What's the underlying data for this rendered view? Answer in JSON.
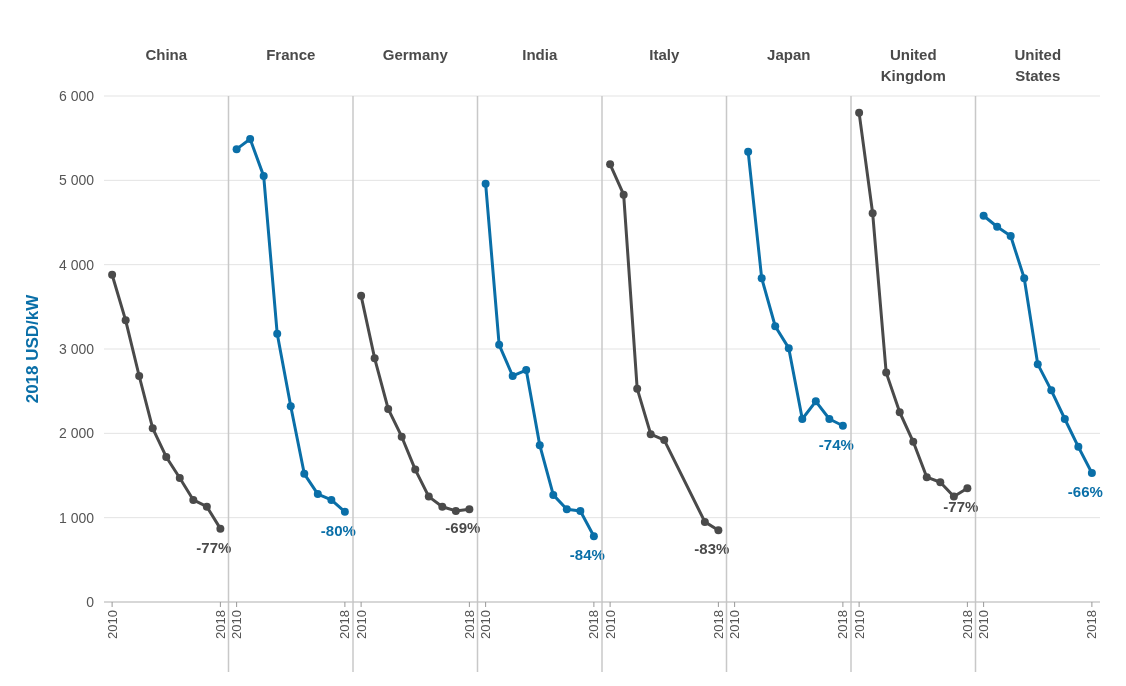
{
  "chart_data": [
    {
      "type": "line",
      "title": "China",
      "ylabel": "2018 USD/kW",
      "categories": [
        "2010",
        null,
        null,
        null,
        null,
        null,
        null,
        null,
        "2018"
      ],
      "series": [
        {
          "color": "#4a4a4a",
          "values": [
            3880,
            3340,
            2680,
            2060,
            1720,
            1470,
            1210,
            1130,
            870
          ]
        }
      ],
      "annotations": [
        {
          "text": "-77%",
          "x": "2018",
          "y": 870
        }
      ],
      "ylim": [
        0,
        6000
      ],
      "yticks": [
        0,
        {
          "value": 1000,
          "label": "1 000"
        },
        {
          "value": 2000,
          "label": "2 000"
        },
        {
          "value": 3000,
          "label": "3 000"
        },
        {
          "value": 4000,
          "label": "4 000"
        },
        {
          "value": 5000,
          "label": "5 000"
        },
        {
          "value": 6000,
          "label": "6 000"
        }
      ],
      "grid": "y",
      "marker": "circle"
    },
    {
      "type": "line",
      "title": "France",
      "categories": [
        "2010",
        null,
        null,
        null,
        null,
        null,
        null,
        null,
        "2018"
      ],
      "series": [
        {
          "color": "#0a6fa8",
          "values": [
            5370,
            5490,
            5050,
            3180,
            2320,
            1520,
            1280,
            1210,
            1070
          ]
        }
      ],
      "annotations": [
        {
          "text": "-80%",
          "x": "2018",
          "y": 1070
        }
      ],
      "ylim": [
        0,
        6000
      ],
      "yticks": [
        0,
        1000,
        2000,
        3000,
        4000,
        5000,
        6000
      ],
      "grid": "y",
      "marker": "circle",
      "tick_labels": "x"
    },
    {
      "type": "line",
      "title": "Germany",
      "categories": [
        "2010",
        null,
        null,
        null,
        null,
        null,
        null,
        null,
        "2018"
      ],
      "series": [
        {
          "color": "#4a4a4a",
          "values": [
            3630,
            2890,
            2290,
            1960,
            1570,
            1250,
            1130,
            1080,
            1100
          ]
        }
      ],
      "annotations": [
        {
          "text": "-69%",
          "x": "2018",
          "y": 1100
        }
      ],
      "ylim": [
        0,
        6000
      ],
      "yticks": [
        0,
        1000,
        2000,
        3000,
        4000,
        5000,
        6000
      ],
      "grid": "y",
      "marker": "circle",
      "tick_labels": "x"
    },
    {
      "type": "line",
      "title": "India",
      "categories": [
        "2010",
        null,
        null,
        null,
        null,
        null,
        null,
        null,
        "2018"
      ],
      "series": [
        {
          "color": "#0a6fa8",
          "values": [
            4960,
            3050,
            2680,
            2750,
            1860,
            1270,
            1100,
            1080,
            780
          ]
        }
      ],
      "annotations": [
        {
          "text": "-84%",
          "x": "2018",
          "y": 780
        }
      ],
      "ylim": [
        0,
        6000
      ],
      "yticks": [
        0,
        1000,
        2000,
        3000,
        4000,
        5000,
        6000
      ],
      "grid": "y",
      "marker": "circle",
      "tick_labels": "x"
    },
    {
      "type": "line",
      "title": "Italy",
      "categories": [
        "2010",
        null,
        null,
        null,
        null,
        null,
        null,
        null,
        "2018"
      ],
      "series": [
        {
          "color": "#4a4a4a",
          "values": [
            5190,
            4830,
            2530,
            1990,
            1920,
            null,
            null,
            950,
            850
          ]
        }
      ],
      "annotations": [
        {
          "text": "-83%",
          "x": "2018",
          "y": 850
        }
      ],
      "ylim": [
        0,
        6000
      ],
      "yticks": [
        0,
        1000,
        2000,
        3000,
        4000,
        5000,
        6000
      ],
      "grid": "y",
      "marker": "circle",
      "tick_labels": "x"
    },
    {
      "type": "line",
      "title": "Japan",
      "categories": [
        "2010",
        null,
        null,
        null,
        null,
        null,
        null,
        null,
        "2018"
      ],
      "series": [
        {
          "color": "#0a6fa8",
          "values": [
            null,
            5340,
            3840,
            3270,
            3010,
            2170,
            2380,
            2170,
            2090
          ]
        }
      ],
      "annotations": [
        {
          "text": "-74%",
          "x": "2018",
          "y": 2090
        }
      ],
      "ylim": [
        0,
        6000
      ],
      "yticks": [
        0,
        1000,
        2000,
        3000,
        4000,
        5000,
        6000
      ],
      "grid": "y",
      "marker": "circle",
      "tick_labels": "x"
    },
    {
      "type": "line",
      "title": "United Kingdom",
      "categories": [
        "2010",
        null,
        null,
        null,
        null,
        null,
        null,
        null,
        "2018"
      ],
      "series": [
        {
          "color": "#4a4a4a",
          "values": [
            5800,
            4610,
            2720,
            2250,
            1900,
            1480,
            1420,
            1250,
            1350
          ]
        }
      ],
      "annotations": [
        {
          "text": "-77%",
          "x": "2018",
          "y": 1350
        }
      ],
      "ylim": [
        0,
        6000
      ],
      "yticks": [
        0,
        1000,
        2000,
        3000,
        4000,
        5000,
        6000
      ],
      "grid": "y",
      "marker": "circle",
      "tick_labels": "x"
    },
    {
      "type": "line",
      "title": "United States",
      "categories": [
        "2010",
        null,
        null,
        null,
        null,
        null,
        null,
        null,
        "2018"
      ],
      "series": [
        {
          "color": "#0a6fa8",
          "values": [
            4580,
            4450,
            4340,
            3840,
            2820,
            2510,
            2170,
            1840,
            1530
          ]
        }
      ],
      "annotations": [
        {
          "text": "-66%",
          "x": "2018",
          "y": 1530
        }
      ],
      "ylim": [
        0,
        6000
      ],
      "yticks": [
        0,
        1000,
        2000,
        3000,
        4000,
        5000,
        6000
      ],
      "grid": "y",
      "marker": "circle",
      "tick_labels": "x"
    }
  ]
}
